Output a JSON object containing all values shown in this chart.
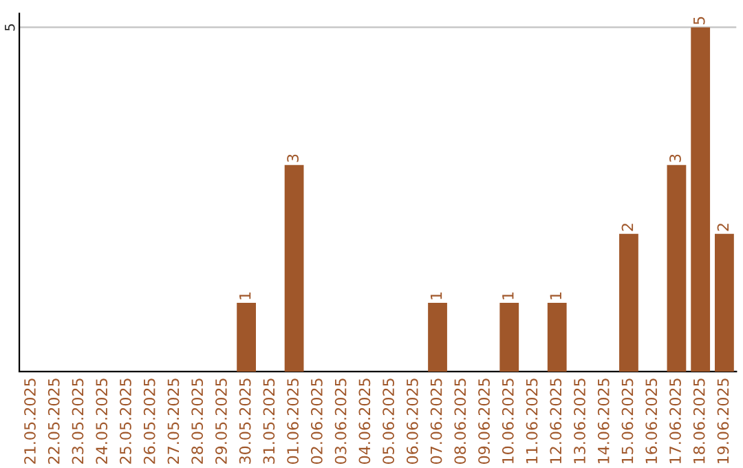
{
  "chart_data": {
    "type": "bar",
    "categories": [
      "21.05.2025",
      "22.05.2025",
      "23.05.2025",
      "24.05.2025",
      "25.05.2025",
      "26.05.2025",
      "27.05.2025",
      "28.05.2025",
      "29.05.2025",
      "30.05.2025",
      "31.05.2025",
      "01.06.2025",
      "02.06.2025",
      "03.06.2025",
      "04.06.2025",
      "05.06.2025",
      "06.06.2025",
      "07.06.2025",
      "08.06.2025",
      "09.06.2025",
      "10.06.2025",
      "11.06.2025",
      "12.06.2025",
      "13.06.2025",
      "14.06.2025",
      "15.06.2025",
      "16.06.2025",
      "17.06.2025",
      "18.06.2025",
      "19.06.2025"
    ],
    "values": [
      0,
      0,
      0,
      0,
      0,
      0,
      0,
      0,
      0,
      1,
      0,
      3,
      0,
      0,
      0,
      0,
      0,
      1,
      0,
      0,
      1,
      0,
      1,
      0,
      0,
      2,
      0,
      3,
      5,
      2
    ],
    "value_labels": [
      null,
      null,
      null,
      null,
      null,
      null,
      null,
      null,
      null,
      "1",
      null,
      "3",
      null,
      null,
      null,
      null,
      null,
      "1",
      null,
      null,
      "1",
      null,
      "1",
      null,
      null,
      "2",
      null,
      "3",
      "5",
      "2"
    ],
    "color": "#a0572a",
    "ylim": [
      0,
      5.2
    ],
    "yticks": [
      5
    ],
    "grid": "y"
  }
}
